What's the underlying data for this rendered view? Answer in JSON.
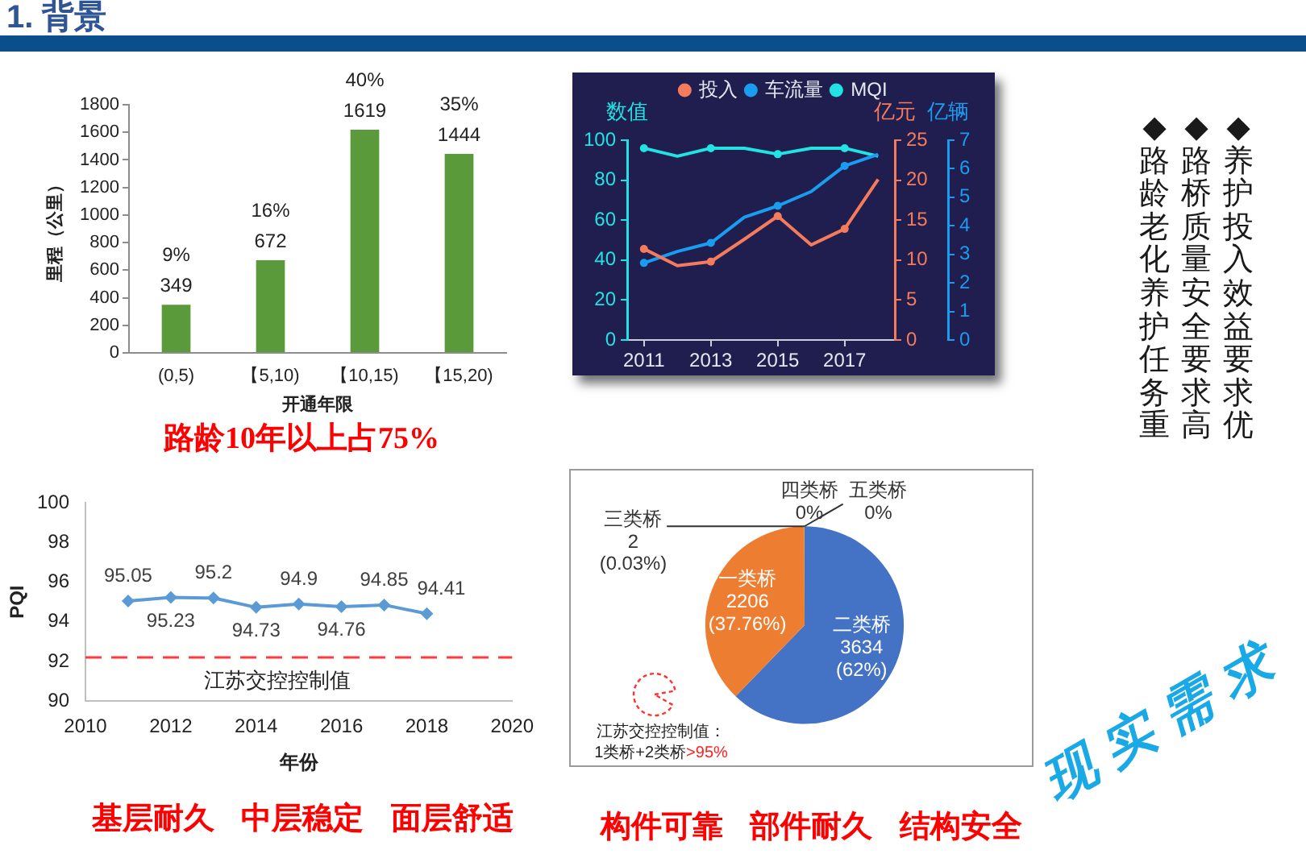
{
  "chart_data": [
    {
      "type": "bar",
      "categories": [
        "(0,5)",
        "【5,10)",
        "【10,15)",
        "【15,20)"
      ],
      "values": [
        349,
        672,
        1619,
        1444
      ],
      "color": "#5b9a3a",
      "ylim": [
        0,
        1800
      ],
      "yticks": [
        0,
        200,
        400,
        600,
        800,
        1000,
        1200,
        1400,
        1600,
        1800
      ],
      "ylabel": "里程（公里）",
      "xlabel": "开通年限",
      "data_labels": true,
      "annotations": [
        {
          "text": "9%",
          "x": "(0,5)",
          "y": 349
        },
        {
          "text": "16%",
          "x": "【5,10)",
          "y": 672
        },
        {
          "text": "40%",
          "x": "【10,15)",
          "y": 1619
        },
        {
          "text": "35%",
          "x": "【15,20)",
          "y": 1444
        },
        "路龄10年以上占75%"
      ]
    },
    {
      "type": "line",
      "legend": "top",
      "marker": "circle",
      "categories": [
        "2011",
        null,
        "2013",
        null,
        "2015",
        null,
        "2017",
        null
      ],
      "series": [
        {
          "name": "投入",
          "color": "#f47c5c",
          "axis": "y2",
          "values": [
            11.4,
            9.3,
            9.8,
            12.6,
            15.5,
            11.9,
            13.9,
            20.1
          ]
        },
        {
          "name": "车流量",
          "color": "#1a9cf0",
          "axis": "y3",
          "values": [
            2.7,
            3.1,
            3.4,
            4.3,
            4.7,
            5.2,
            6.1,
            6.5
          ]
        },
        {
          "name": "MQI",
          "color": "#22e3e3",
          "values": [
            96,
            92,
            96,
            96,
            93,
            96,
            96,
            92
          ]
        }
      ],
      "ylim": [
        0,
        100
      ],
      "yticks": [
        0,
        20,
        40,
        60,
        80,
        100
      ],
      "ylabel": "数值",
      "y2lim": [
        0,
        25
      ],
      "y2ticks": [
        0,
        5,
        10,
        15,
        20,
        25
      ],
      "y2label": "亿元",
      "y3lim": [
        0,
        7
      ],
      "y3ticks": [
        0,
        1,
        2,
        3,
        4,
        5,
        6,
        7
      ],
      "y3label": "亿辆"
    },
    {
      "type": "line",
      "x": [
        2011,
        2012,
        2013,
        2014,
        2015,
        2016,
        2017,
        2018
      ],
      "values": [
        95.05,
        95.23,
        95.2,
        94.73,
        94.9,
        94.76,
        94.85,
        94.41
      ],
      "color": "#5b9bd5",
      "marker": "diamond",
      "data_labels": true,
      "xlim": [
        2010,
        2020
      ],
      "xticks": [
        2010,
        2012,
        2014,
        2016,
        2018,
        2020
      ],
      "ylim": [
        90,
        100
      ],
      "yticks": [
        90,
        92,
        94,
        96,
        98,
        100
      ],
      "xlabel": "年份",
      "ylabel": "PQI",
      "ref_lines": [
        {
          "axis": "y",
          "value": 92.2,
          "label": "江苏交控控制值",
          "color": "#ff3b3b",
          "line_style": "dashed"
        }
      ],
      "annotations": [
        "基层耐久 中层稳定 面层舒适"
      ]
    },
    {
      "type": "pie",
      "categories": [
        "二类桥",
        "一类桥",
        "三类桥",
        "四类桥",
        "五类桥"
      ],
      "values": [
        3634,
        2206,
        2,
        0,
        0
      ],
      "value_labels": [
        "3634\n(62%)",
        "2206\n(37.76%)",
        "2\n(0.03%)",
        "0%",
        "0%"
      ],
      "colors": [
        "#4472c4",
        "#ed7d31",
        "#a5a5a5",
        "#ffc000",
        "#5b9bd5"
      ],
      "annotations": [
        "江苏交控控制值：",
        "1类桥+2类桥",
        ">95%",
        "构件可靠 部件耐久 结构安全"
      ]
    },
    {
      "type": "other",
      "title": "1. 背景",
      "annotations": [
        "◆养护投入效益要求优",
        "◆路桥质量安全要求高",
        "◆路龄老化养护任务重",
        "现实需求"
      ]
    }
  ]
}
